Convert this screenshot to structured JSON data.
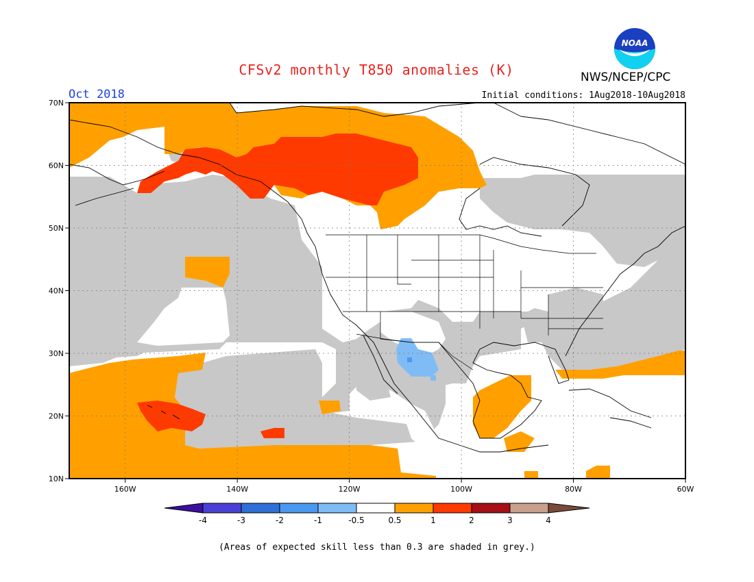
{
  "title": "CFSv2 monthly T850 anomalies (K)",
  "agency": "NWS/NCEP/CPC",
  "logo_text": "NOAA",
  "month": "Oct 2018",
  "initial_conditions": "Initial conditions: 1Aug2018-10Aug2018",
  "caption": "(Areas of expected skill less than 0.3 are shaded in grey.)",
  "map": {
    "lat_labels": [
      "70N",
      "60N",
      "50N",
      "40N",
      "30N",
      "20N",
      "10N"
    ],
    "lon_labels": [
      "160W",
      "140W",
      "120W",
      "100W",
      "80W",
      "60W"
    ],
    "lon_range": [
      -170,
      -60
    ],
    "lat_range": [
      10,
      70
    ]
  },
  "colorbar": {
    "labels": [
      "-4",
      "-3",
      "-2",
      "-1",
      "-0.5",
      "0.5",
      "1",
      "2",
      "3",
      "4"
    ],
    "colors": [
      "#3d0fa0",
      "#4b40d6",
      "#2f6fd6",
      "#4a98f0",
      "#7fbcf5",
      "#ffffff",
      "#ffa000",
      "#ff3a00",
      "#a50f15",
      "#c8a08c",
      "#7a4a3a"
    ]
  },
  "legend_colors": {
    "no_skill": "#c8c8c8",
    "warm_0_5_1": "#ffa000",
    "warm_1_2": "#ff3a00",
    "cool_0_5_1": "#7fbcf5",
    "cool_1_2": "#4a98f0"
  }
}
